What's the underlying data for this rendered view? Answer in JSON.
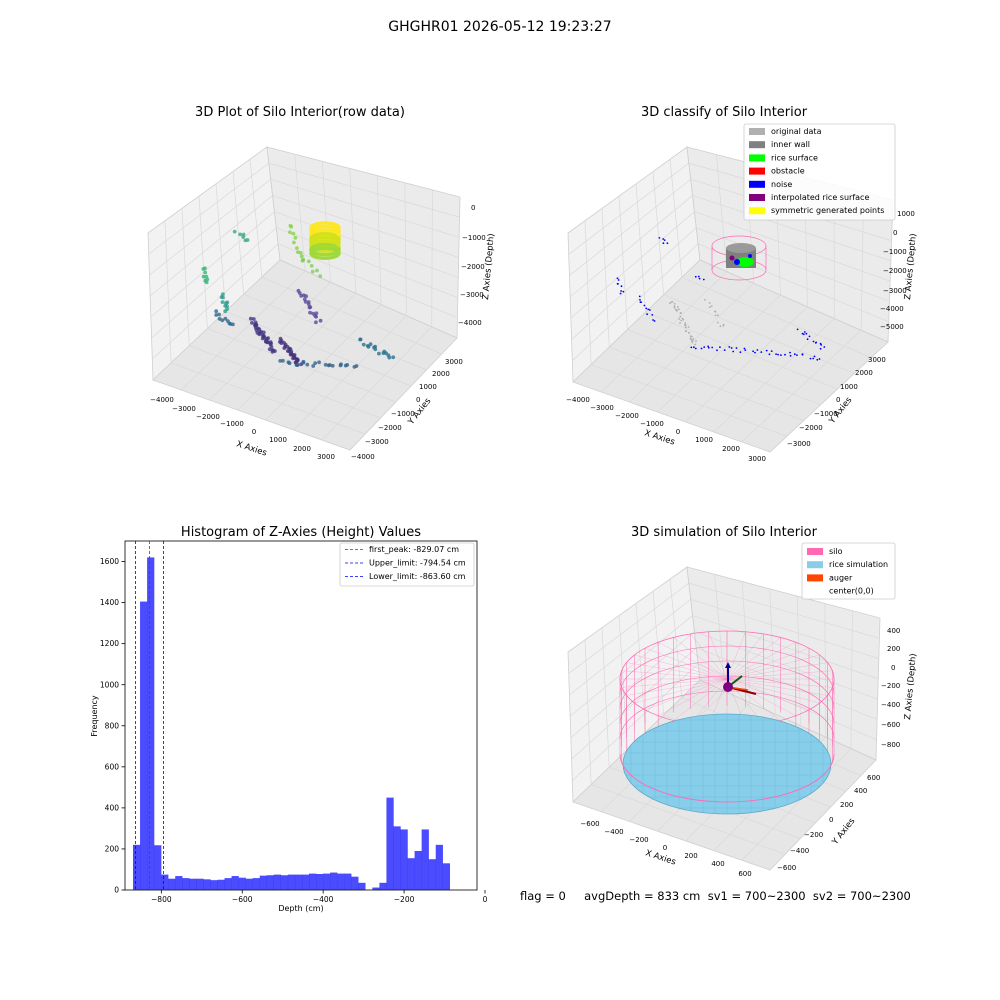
{
  "figure": {
    "suptitle": "GHGHR01 2026-05-12 19:23:27",
    "footer": "flag = 0     avgDepth = 833 cm  sv1 = 700~2300  sv2 = 700~2300"
  },
  "panels": {
    "raw": {
      "title": "3D Plot of Silo Interior(row data)",
      "xlabel": "X Axies",
      "ylabel": "Y Axies",
      "zlabel": "Z Axies (Depth)",
      "xticks": [
        "−4000",
        "−3000",
        "−2000",
        "−1000",
        "0",
        "1000",
        "2000",
        "3000"
      ],
      "yticks": [
        "−4000",
        "−3000",
        "−2000",
        "−1000",
        "0",
        "1000",
        "2000",
        "3000"
      ],
      "zticks": [
        "−4000",
        "−3000",
        "−2000",
        "−1000",
        "0"
      ]
    },
    "classify": {
      "title": "3D classify of Silo Interior",
      "xlabel": "X Axies",
      "ylabel": "Y Axies",
      "zlabel": "Z Axies (Depth)",
      "xticks": [
        "−4000",
        "−3000",
        "−2000",
        "−1000",
        "0",
        "1000",
        "2000",
        "3000"
      ],
      "yticks": [
        "−3000",
        "−2000",
        "−1000",
        "0",
        "1000",
        "2000",
        "3000"
      ],
      "zticks": [
        "−5000",
        "−4000",
        "−3000",
        "−2000",
        "−1000",
        "0",
        "1000"
      ],
      "legend": [
        {
          "label": "original data",
          "color": "#b0b0b0"
        },
        {
          "label": "inner wall",
          "color": "#808080"
        },
        {
          "label": "rice surface",
          "color": "#00ff00"
        },
        {
          "label": "obstacle",
          "color": "#ff0000"
        },
        {
          "label": "noise",
          "color": "#0000ff"
        },
        {
          "label": "interpolated rice surface",
          "color": "#800080"
        },
        {
          "label": "symmetric generated points",
          "color": "#ffff00"
        }
      ]
    },
    "sim": {
      "title": "3D simulation of Silo Interior",
      "xlabel": "X Axies",
      "ylabel": "Y Axies",
      "zlabel": "Z Axies (Depth)",
      "xticks": [
        "−600",
        "−400",
        "−200",
        "0",
        "200",
        "400",
        "600"
      ],
      "yticks": [
        "−600",
        "−400",
        "−200",
        "0",
        "200",
        "400",
        "600"
      ],
      "zticks": [
        "−800",
        "−600",
        "−400",
        "−200",
        "0",
        "200",
        "400"
      ],
      "legend": [
        {
          "label": "silo",
          "color": "#ff69b4"
        },
        {
          "label": "rice simulation",
          "color": "#87ceeb"
        },
        {
          "label": "auger",
          "color": "#ff4500"
        },
        {
          "label": "center(0,0)",
          "color": ""
        }
      ]
    }
  },
  "chart_data": [
    {
      "type": "bar",
      "title": "Histogram of Z-Axies (Height) Values",
      "xlabel": "Depth (cm)",
      "ylabel": "Frequency",
      "xlim": [
        -870,
        0
      ],
      "ylim": [
        0,
        1700
      ],
      "xticks": [
        -800,
        -600,
        -400,
        -200,
        0
      ],
      "yticks": [
        0,
        200,
        400,
        600,
        800,
        1000,
        1200,
        1400,
        1600
      ],
      "bin_start": -870,
      "bin_width": 17.4,
      "values": [
        220,
        1405,
        1620,
        218,
        75,
        55,
        68,
        58,
        55,
        55,
        52,
        48,
        50,
        58,
        68,
        60,
        55,
        58,
        70,
        72,
        75,
        72,
        75,
        75,
        75,
        80,
        78,
        80,
        85,
        80,
        80,
        65,
        35,
        0,
        12,
        35,
        450,
        310,
        295,
        155,
        190,
        295,
        150,
        220,
        130
      ],
      "bar_color": "#0000ff",
      "vlines": [
        {
          "label": "first_peak: -829.07 cm",
          "x": -829.07,
          "color": "#ff0000"
        },
        {
          "label": "Upper_limit: -794.54 cm",
          "x": -794.54,
          "color": "#0000ff"
        },
        {
          "label": "Lower_limit: -863.60 cm",
          "x": -863.6,
          "color": "#0000ff"
        }
      ],
      "legend_position": "top-right"
    }
  ]
}
